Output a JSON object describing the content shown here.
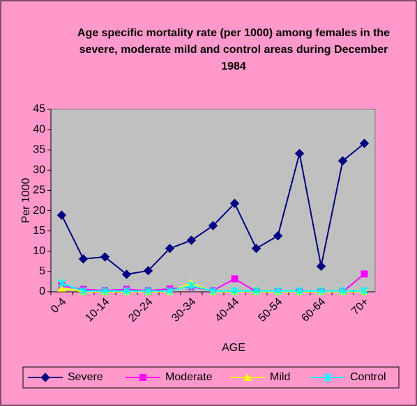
{
  "chart_data": {
    "type": "line",
    "title": "Age specific mortality rate (per 1000) among females in the severe, moderate mild and control areas during December 1984",
    "x_label": "AGE",
    "y_label": "Per 1000",
    "categories": [
      "0-4",
      null,
      "10-14",
      null,
      "20-24",
      null,
      "30-34",
      null,
      "40-44",
      null,
      "50-54",
      null,
      "60-64",
      null,
      "70+"
    ],
    "series": [
      {
        "name": "Severe",
        "color": "#000080",
        "marker": "diamond",
        "values": [
          18.9,
          8.1,
          8.6,
          4.3,
          5.2,
          10.7,
          12.7,
          16.3,
          21.8,
          10.7,
          13.8,
          34.1,
          6.3,
          32.3,
          36.6
        ]
      },
      {
        "name": "Moderate",
        "color": "#ff00ff",
        "marker": "square",
        "values": [
          1.5,
          0.6,
          0.3,
          0.6,
          0.3,
          0.7,
          1.2,
          0.3,
          3.2,
          0,
          0,
          0,
          0,
          0,
          4.4
        ]
      },
      {
        "name": "Mild",
        "color": "#ffff00",
        "marker": "triangle",
        "values": [
          0.9,
          0,
          0,
          0,
          0,
          0,
          2.1,
          0,
          0,
          0,
          0,
          0,
          0,
          0,
          0
        ]
      },
      {
        "name": "Control",
        "color": "#00ffff",
        "marker": "asterisk",
        "values": [
          2.1,
          0.2,
          0.2,
          0.2,
          0.2,
          0.2,
          1.5,
          0.2,
          0.2,
          0.2,
          0.2,
          0.2,
          0.2,
          0.2,
          0.2
        ]
      }
    ],
    "ylim": [
      0,
      45
    ],
    "yticks": [
      0,
      5,
      10,
      15,
      20,
      25,
      30,
      35,
      40,
      45
    ],
    "grid": false,
    "legend": "bottom"
  }
}
